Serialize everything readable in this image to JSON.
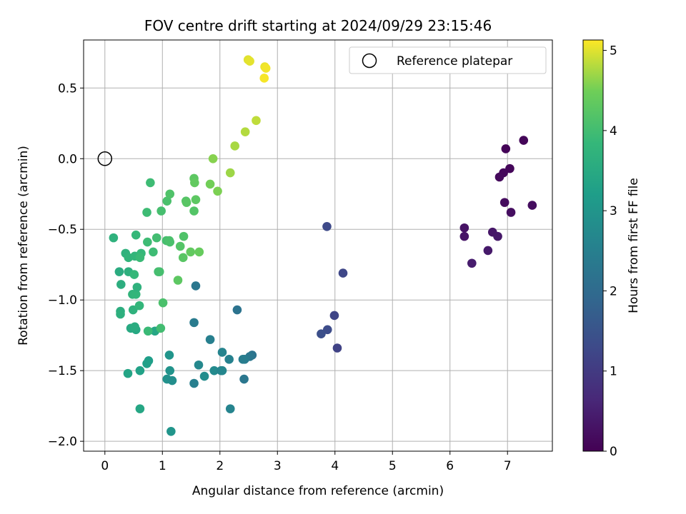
{
  "chart_data": {
    "type": "scatter",
    "title": "FOV centre drift starting at 2024/09/29 23:15:46",
    "xlabel": "Angular distance from reference (arcmin)",
    "ylabel": "Rotation from reference (arcmin)",
    "xlim": [
      -0.37,
      7.78
    ],
    "ylim": [
      -2.07,
      0.84
    ],
    "xticks": [
      0,
      1,
      2,
      3,
      4,
      5,
      6,
      7
    ],
    "xtick_labels": [
      "0",
      "1",
      "2",
      "3",
      "4",
      "5",
      "6",
      "7"
    ],
    "yticks": [
      0.5,
      0.0,
      -0.5,
      -1.0,
      -1.5,
      -2.0
    ],
    "ytick_labels": [
      "0.5",
      "0.0",
      "−0.5",
      "−1.0",
      "−1.5",
      "−2.0"
    ],
    "grid": true,
    "legend": {
      "position": "top-right",
      "entries": [
        "Reference platepar"
      ]
    },
    "reference": {
      "x": 0,
      "y": 0
    },
    "colorbar": {
      "label": "Hours from first FF file",
      "range": [
        0,
        5.13
      ],
      "ticks": [
        0,
        1,
        2,
        3,
        4,
        5
      ],
      "tick_labels": [
        "0",
        "1",
        "2",
        "3",
        "4",
        "5"
      ],
      "colormap": "viridis"
    },
    "points": [
      {
        "x": 6.97,
        "y": 0.07,
        "c": 0.05
      },
      {
        "x": 7.28,
        "y": 0.13,
        "c": 0.08
      },
      {
        "x": 7.04,
        "y": -0.07,
        "c": 0.1
      },
      {
        "x": 6.93,
        "y": -0.1,
        "c": 0.12
      },
      {
        "x": 6.86,
        "y": -0.13,
        "c": 0.15
      },
      {
        "x": 6.95,
        "y": -0.31,
        "c": 0.18
      },
      {
        "x": 7.43,
        "y": -0.33,
        "c": 0.2
      },
      {
        "x": 7.06,
        "y": -0.38,
        "c": 0.22
      },
      {
        "x": 6.25,
        "y": -0.49,
        "c": 0.3
      },
      {
        "x": 6.25,
        "y": -0.55,
        "c": 0.32
      },
      {
        "x": 6.74,
        "y": -0.52,
        "c": 0.35
      },
      {
        "x": 6.83,
        "y": -0.55,
        "c": 0.38
      },
      {
        "x": 6.66,
        "y": -0.65,
        "c": 0.4
      },
      {
        "x": 6.38,
        "y": -0.74,
        "c": 0.45
      },
      {
        "x": 3.86,
        "y": -0.48,
        "c": 1.3
      },
      {
        "x": 4.14,
        "y": -0.81,
        "c": 1.25
      },
      {
        "x": 3.99,
        "y": -1.11,
        "c": 1.2
      },
      {
        "x": 3.87,
        "y": -1.21,
        "c": 1.35
      },
      {
        "x": 3.76,
        "y": -1.24,
        "c": 1.4
      },
      {
        "x": 4.04,
        "y": -1.34,
        "c": 1.15
      },
      {
        "x": 1.58,
        "y": -0.9,
        "c": 2.3
      },
      {
        "x": 2.3,
        "y": -1.07,
        "c": 2.2
      },
      {
        "x": 1.55,
        "y": -1.16,
        "c": 2.4
      },
      {
        "x": 1.83,
        "y": -1.28,
        "c": 2.5
      },
      {
        "x": 2.04,
        "y": -1.37,
        "c": 2.6
      },
      {
        "x": 2.56,
        "y": -1.39,
        "c": 2.2
      },
      {
        "x": 2.52,
        "y": -1.4,
        "c": 2.3
      },
      {
        "x": 2.43,
        "y": -1.42,
        "c": 2.4
      },
      {
        "x": 2.4,
        "y": -1.42,
        "c": 2.45
      },
      {
        "x": 2.16,
        "y": -1.42,
        "c": 2.55
      },
      {
        "x": 1.63,
        "y": -1.46,
        "c": 2.7
      },
      {
        "x": 1.9,
        "y": -1.5,
        "c": 2.75
      },
      {
        "x": 2.02,
        "y": -1.5,
        "c": 2.6
      },
      {
        "x": 2.04,
        "y": -1.5,
        "c": 2.65
      },
      {
        "x": 1.73,
        "y": -1.54,
        "c": 2.8
      },
      {
        "x": 2.42,
        "y": -1.56,
        "c": 2.3
      },
      {
        "x": 1.55,
        "y": -1.59,
        "c": 2.5
      },
      {
        "x": 2.18,
        "y": -1.77,
        "c": 2.6
      },
      {
        "x": 1.12,
        "y": -1.39,
        "c": 3.0
      },
      {
        "x": 1.13,
        "y": -1.5,
        "c": 2.95
      },
      {
        "x": 1.08,
        "y": -1.56,
        "c": 2.9
      },
      {
        "x": 1.17,
        "y": -1.57,
        "c": 2.85
      },
      {
        "x": 1.15,
        "y": -1.93,
        "c": 3.0
      },
      {
        "x": 0.76,
        "y": -1.43,
        "c": 3.2
      },
      {
        "x": 0.73,
        "y": -1.45,
        "c": 3.25
      },
      {
        "x": 0.61,
        "y": -1.5,
        "c": 3.3
      },
      {
        "x": 0.4,
        "y": -1.52,
        "c": 3.35
      },
      {
        "x": 0.61,
        "y": -1.77,
        "c": 3.4
      },
      {
        "x": 0.54,
        "y": -1.21,
        "c": 3.45
      },
      {
        "x": 0.45,
        "y": -1.2,
        "c": 3.5
      },
      {
        "x": 0.87,
        "y": -1.22,
        "c": 3.4
      },
      {
        "x": 0.52,
        "y": -1.19,
        "c": 3.55
      },
      {
        "x": 0.75,
        "y": -1.22,
        "c": 3.9
      },
      {
        "x": 0.97,
        "y": -1.2,
        "c": 4.0
      },
      {
        "x": 0.27,
        "y": -1.08,
        "c": 3.6
      },
      {
        "x": 0.27,
        "y": -1.1,
        "c": 3.65
      },
      {
        "x": 0.49,
        "y": -1.07,
        "c": 3.7
      },
      {
        "x": 0.6,
        "y": -1.04,
        "c": 3.8
      },
      {
        "x": 1.01,
        "y": -1.02,
        "c": 4.1
      },
      {
        "x": 0.48,
        "y": -0.96,
        "c": 3.75
      },
      {
        "x": 0.54,
        "y": -0.96,
        "c": 3.8
      },
      {
        "x": 0.56,
        "y": -0.91,
        "c": 3.7
      },
      {
        "x": 0.28,
        "y": -0.89,
        "c": 3.6
      },
      {
        "x": 0.25,
        "y": -0.8,
        "c": 3.55
      },
      {
        "x": 0.41,
        "y": -0.8,
        "c": 3.65
      },
      {
        "x": 0.51,
        "y": -0.82,
        "c": 3.85
      },
      {
        "x": 0.93,
        "y": -0.8,
        "c": 4.0
      },
      {
        "x": 0.95,
        "y": -0.8,
        "c": 4.05
      },
      {
        "x": 1.27,
        "y": -0.86,
        "c": 4.3
      },
      {
        "x": 0.36,
        "y": -0.67,
        "c": 3.7
      },
      {
        "x": 0.41,
        "y": -0.7,
        "c": 3.75
      },
      {
        "x": 0.52,
        "y": -0.69,
        "c": 3.8
      },
      {
        "x": 0.63,
        "y": -0.67,
        "c": 3.85
      },
      {
        "x": 0.61,
        "y": -0.7,
        "c": 3.9
      },
      {
        "x": 0.84,
        "y": -0.66,
        "c": 3.95
      },
      {
        "x": 0.15,
        "y": -0.56,
        "c": 3.7
      },
      {
        "x": 0.54,
        "y": -0.54,
        "c": 3.85
      },
      {
        "x": 0.74,
        "y": -0.59,
        "c": 3.95
      },
      {
        "x": 0.9,
        "y": -0.56,
        "c": 4.0
      },
      {
        "x": 1.07,
        "y": -0.58,
        "c": 4.05
      },
      {
        "x": 1.12,
        "y": -0.58,
        "c": 4.1
      },
      {
        "x": 1.13,
        "y": -0.59,
        "c": 4.1
      },
      {
        "x": 1.31,
        "y": -0.62,
        "c": 4.2
      },
      {
        "x": 1.37,
        "y": -0.55,
        "c": 4.15
      },
      {
        "x": 1.36,
        "y": -0.7,
        "c": 4.25
      },
      {
        "x": 1.49,
        "y": -0.66,
        "c": 4.35
      },
      {
        "x": 1.64,
        "y": -0.66,
        "c": 4.4
      },
      {
        "x": 0.73,
        "y": -0.38,
        "c": 3.95
      },
      {
        "x": 0.98,
        "y": -0.37,
        "c": 4.05
      },
      {
        "x": 1.08,
        "y": -0.3,
        "c": 4.1
      },
      {
        "x": 1.13,
        "y": -0.25,
        "c": 4.15
      },
      {
        "x": 0.79,
        "y": -0.17,
        "c": 3.95
      },
      {
        "x": 1.41,
        "y": -0.3,
        "c": 4.2
      },
      {
        "x": 1.42,
        "y": -0.31,
        "c": 4.25
      },
      {
        "x": 1.55,
        "y": -0.37,
        "c": 4.2
      },
      {
        "x": 1.58,
        "y": -0.29,
        "c": 4.3
      },
      {
        "x": 1.55,
        "y": -0.14,
        "c": 4.3
      },
      {
        "x": 1.56,
        "y": -0.17,
        "c": 4.35
      },
      {
        "x": 1.83,
        "y": -0.18,
        "c": 4.5
      },
      {
        "x": 1.96,
        "y": -0.23,
        "c": 4.55
      },
      {
        "x": 1.88,
        "y": 0.0,
        "c": 4.6
      },
      {
        "x": 2.18,
        "y": -0.1,
        "c": 4.7
      },
      {
        "x": 2.26,
        "y": 0.09,
        "c": 4.75
      },
      {
        "x": 2.44,
        "y": 0.19,
        "c": 4.8
      },
      {
        "x": 2.63,
        "y": 0.27,
        "c": 4.85
      },
      {
        "x": 2.49,
        "y": 0.7,
        "c": 5.0
      },
      {
        "x": 2.52,
        "y": 0.69,
        "c": 5.02
      },
      {
        "x": 2.78,
        "y": 0.65,
        "c": 5.05
      },
      {
        "x": 2.8,
        "y": 0.64,
        "c": 5.08
      },
      {
        "x": 2.77,
        "y": 0.57,
        "c": 5.1
      }
    ]
  }
}
